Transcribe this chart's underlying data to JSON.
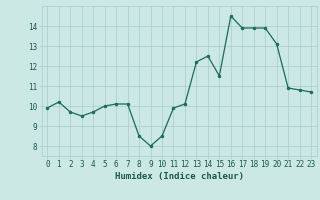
{
  "x": [
    0,
    1,
    2,
    3,
    4,
    5,
    6,
    7,
    8,
    9,
    10,
    11,
    12,
    13,
    14,
    15,
    16,
    17,
    18,
    19,
    20,
    21,
    22,
    23
  ],
  "y": [
    9.9,
    10.2,
    9.7,
    9.5,
    9.7,
    10.0,
    10.1,
    10.1,
    8.5,
    8.0,
    8.5,
    9.9,
    10.1,
    12.2,
    12.5,
    11.5,
    14.5,
    13.9,
    13.9,
    13.9,
    13.1,
    10.9,
    10.8,
    10.7
  ],
  "xlabel": "Humidex (Indice chaleur)",
  "ylabel": "",
  "xlim": [
    -0.5,
    23.5
  ],
  "ylim": [
    7.5,
    15.0
  ],
  "yticks": [
    8,
    9,
    10,
    11,
    12,
    13,
    14
  ],
  "xticks": [
    0,
    1,
    2,
    3,
    4,
    5,
    6,
    7,
    8,
    9,
    10,
    11,
    12,
    13,
    14,
    15,
    16,
    17,
    18,
    19,
    20,
    21,
    22,
    23
  ],
  "line_color": "#1a6b5a",
  "marker_color": "#1a6b5a",
  "bg_color": "#cce8e4",
  "grid_color": "#aacccc",
  "label_color": "#1a5a4a",
  "xlabel_fontsize": 6.5,
  "tick_fontsize": 5.5
}
